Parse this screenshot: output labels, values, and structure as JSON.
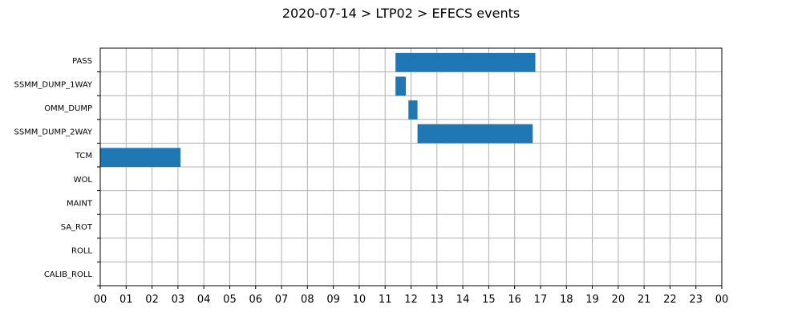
{
  "chart_data": {
    "type": "gantt",
    "title": "2020-07-14 > LTP02 > EFECS events",
    "xlabel": "",
    "ylabel": "",
    "xlim": [
      0,
      24
    ],
    "grid": true,
    "bar_color": "#1f77b4",
    "categories": [
      "PASS",
      "SSMM_DUMP_1WAY",
      "OMM_DUMP",
      "SSMM_DUMP_2WAY",
      "TCM",
      "WOL",
      "MAINT",
      "SA_ROT",
      "ROLL",
      "CALIB_ROLL"
    ],
    "x_tick_labels": [
      "00",
      "01",
      "02",
      "03",
      "04",
      "05",
      "06",
      "07",
      "08",
      "09",
      "10",
      "11",
      "12",
      "13",
      "14",
      "15",
      "16",
      "17",
      "18",
      "19",
      "20",
      "21",
      "22",
      "23",
      "00"
    ],
    "events": [
      {
        "category": "PASS",
        "start": 11.4,
        "end": 16.8
      },
      {
        "category": "SSMM_DUMP_1WAY",
        "start": 11.4,
        "end": 11.8
      },
      {
        "category": "OMM_DUMP",
        "start": 11.9,
        "end": 12.25
      },
      {
        "category": "SSMM_DUMP_2WAY",
        "start": 12.25,
        "end": 16.7
      },
      {
        "category": "TCM",
        "start": 0.0,
        "end": 3.1
      }
    ]
  }
}
